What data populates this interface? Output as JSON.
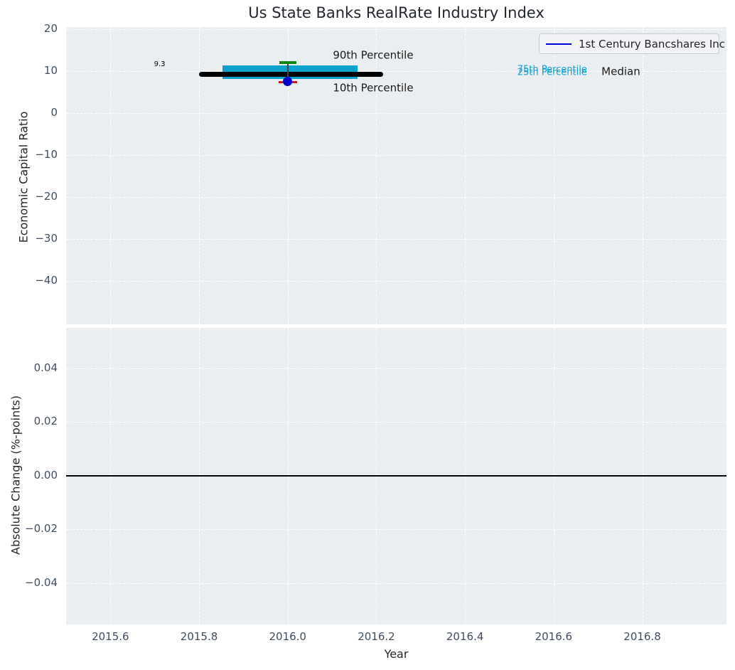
{
  "title": "Us State Banks RealRate Industry Index",
  "legend": {
    "label": "1st Century Bancshares Inc",
    "line_color": "#0000dd"
  },
  "colors": {
    "plot_background": "#eaeef0",
    "grid": "#ffffff",
    "tick_label": "#3f4e60",
    "iqr_band": "#0aa1cd",
    "median_line": "#000000",
    "p90_cap": "#0e8816",
    "p10_cap": "#dd1111",
    "company_point": "#0000cc",
    "percentile_text": "#14a0cf",
    "zero_line": "#000000"
  },
  "chart_data": [
    {
      "type": "scatter",
      "title": "Us State Banks RealRate Industry Index",
      "ylabel": "Economic Capital Ratio",
      "xlim": [
        2015.5,
        2016.99
      ],
      "ylim": [
        -50.3,
        20.5
      ],
      "grid": true,
      "legend_position": "upper right",
      "legend_entries": [
        "1st Century Bancshares Inc"
      ],
      "xticks": [
        {
          "v": 2015.6,
          "label": "2015.6"
        },
        {
          "v": 2015.8,
          "label": "2015.8"
        },
        {
          "v": 2016.0,
          "label": "2016.0"
        },
        {
          "v": 2016.2,
          "label": "2016.2"
        },
        {
          "v": 2016.4,
          "label": "2016.4"
        },
        {
          "v": 2016.6,
          "label": "2016.6"
        },
        {
          "v": 2016.8,
          "label": "2016.8"
        }
      ],
      "yticks": [
        {
          "v": 20,
          "label": "20"
        },
        {
          "v": 10,
          "label": "10"
        },
        {
          "v": 0,
          "label": "0"
        },
        {
          "v": -10,
          "label": "−10"
        },
        {
          "v": -20,
          "label": "−20"
        },
        {
          "v": -30,
          "label": "−30"
        },
        {
          "v": -40,
          "label": "−40"
        }
      ],
      "industry_stats": {
        "median": 9.3,
        "median_label": "9.3",
        "p25": 8.1,
        "p75": 11.3,
        "p10": 7.4,
        "p90": 12.0,
        "median_x_span": [
          2015.8,
          2016.215
        ],
        "iqr_x_span": [
          2015.853,
          2016.157
        ],
        "whisker_x": 2016.0,
        "p90_cap_halfwidth": 0.019,
        "p10_cap_halfwidth": 0.021
      },
      "series": [
        {
          "name": "1st Century Bancshares Inc",
          "points": [
            {
              "x": 2016.0,
              "y": 7.5
            }
          ]
        }
      ],
      "annotations": [
        {
          "text": "9.3",
          "x": 2015.711,
          "y": 11.5,
          "color": "#000000",
          "size": 10,
          "align": "center"
        },
        {
          "text": "90th Percentile",
          "x": 2016.102,
          "y": 13.7,
          "color": "#1a1a1a",
          "size": 15,
          "align": "left"
        },
        {
          "text": "10th Percentile",
          "x": 2016.102,
          "y": 5.9,
          "color": "#1a1a1a",
          "size": 15,
          "align": "left"
        },
        {
          "text": "75th Percentile",
          "x": 2016.518,
          "y": 10.3,
          "color": "#14a0cf",
          "size": 13,
          "align": "left"
        },
        {
          "text": "25th Percentile",
          "x": 2016.518,
          "y": 9.6,
          "color": "#14a0cf",
          "size": 13,
          "align": "left"
        },
        {
          "text": "Median",
          "x": 2016.708,
          "y": 9.9,
          "color": "#1a1a1a",
          "size": 15,
          "align": "left"
        }
      ]
    },
    {
      "type": "line",
      "ylabel": "Absolute Change (%-points)",
      "xlabel": "Year",
      "xlim": [
        2015.5,
        2016.99
      ],
      "ylim": [
        -0.0554,
        0.0551
      ],
      "grid": true,
      "zero_line": 0.0,
      "xticks": [
        {
          "v": 2015.6,
          "label": "2015.6"
        },
        {
          "v": 2015.8,
          "label": "2015.8"
        },
        {
          "v": 2016.0,
          "label": "2016.0"
        },
        {
          "v": 2016.2,
          "label": "2016.2"
        },
        {
          "v": 2016.4,
          "label": "2016.4"
        },
        {
          "v": 2016.6,
          "label": "2016.6"
        },
        {
          "v": 2016.8,
          "label": "2016.8"
        }
      ],
      "yticks": [
        {
          "v": 0.04,
          "label": "0.04"
        },
        {
          "v": 0.02,
          "label": "0.02"
        },
        {
          "v": 0.0,
          "label": "0.00"
        },
        {
          "v": -0.02,
          "label": "−0.02"
        },
        {
          "v": -0.04,
          "label": "−0.04"
        }
      ],
      "series": []
    }
  ]
}
